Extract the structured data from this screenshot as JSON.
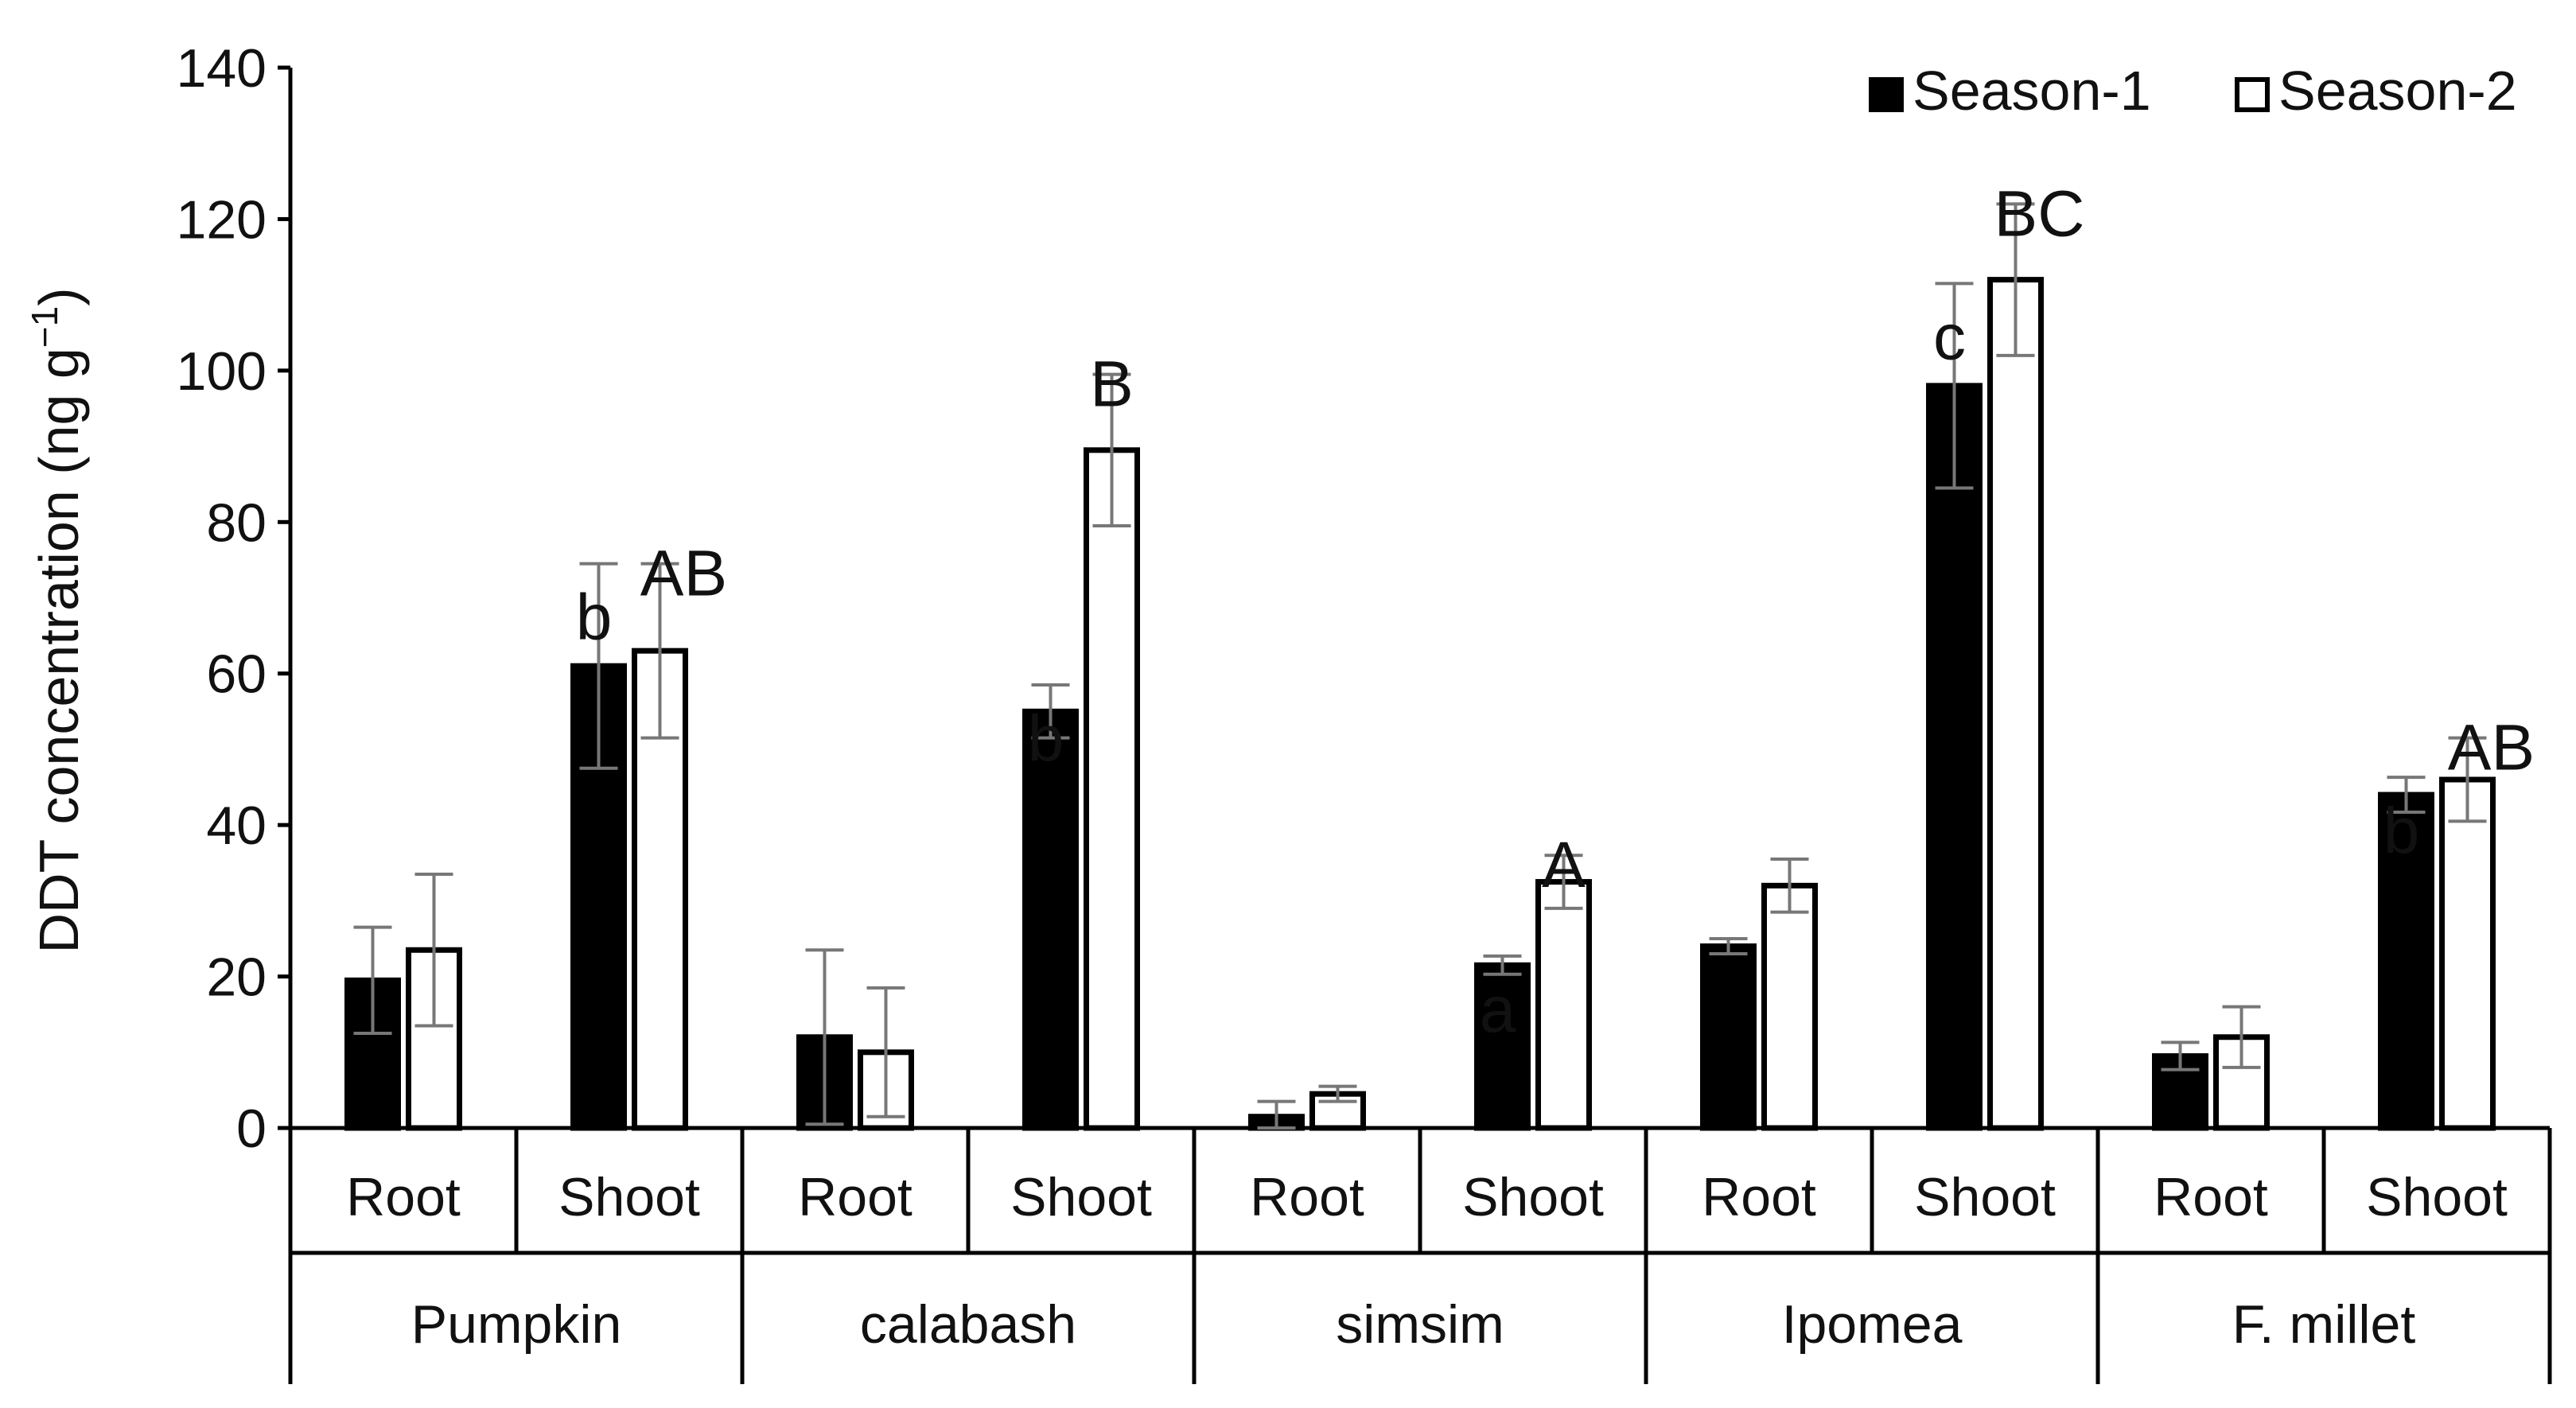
{
  "chart_data": {
    "type": "bar",
    "ylabel": "DDT  concentration (ng g",
    "ylabel_superscript": "−1",
    "ylabel_close": ")",
    "ylim": [
      0,
      140
    ],
    "yticks": [
      0,
      20,
      40,
      60,
      80,
      100,
      120,
      140
    ],
    "groups": [
      "Pumpkin",
      "calabash",
      "simsim",
      "Ipomea",
      "F. millet"
    ],
    "subcategories": [
      "Root",
      "Shoot"
    ],
    "legend": {
      "position": "top-right",
      "entries": [
        "Season-1",
        "Season-2"
      ]
    },
    "colors": {
      "season1": "#000000",
      "season2": "#ffffff",
      "axis": "#000000",
      "error_bar": "#777777"
    },
    "series": [
      {
        "name": "Season-1",
        "values": [
          19.5,
          61,
          12,
          55,
          1.5,
          21.5,
          24,
          98,
          9.5,
          44
        ],
        "errors": [
          7,
          13.5,
          11.5,
          3.5,
          2,
          1.2,
          1,
          13.5,
          1.8,
          2.3
        ]
      },
      {
        "name": "Season-2",
        "values": [
          23.5,
          63,
          10,
          89.5,
          4.5,
          32.5,
          32,
          112,
          12,
          46
        ],
        "errors": [
          10,
          11.5,
          8.5,
          10,
          1,
          3.5,
          3.5,
          10,
          4,
          5.5
        ]
      }
    ],
    "annotations": [
      {
        "index": 1,
        "series": 0,
        "text": "b"
      },
      {
        "index": 1,
        "series": 1,
        "text": "AB"
      },
      {
        "index": 3,
        "series": 0,
        "text": "b"
      },
      {
        "index": 3,
        "series": 1,
        "text": "B"
      },
      {
        "index": 5,
        "series": 0,
        "text": "a"
      },
      {
        "index": 5,
        "series": 1,
        "text": "A"
      },
      {
        "index": 7,
        "series": 0,
        "text": "c"
      },
      {
        "index": 7,
        "series": 1,
        "text": "BC"
      },
      {
        "index": 9,
        "series": 0,
        "text": "b"
      },
      {
        "index": 9,
        "series": 1,
        "text": "AB"
      }
    ]
  }
}
